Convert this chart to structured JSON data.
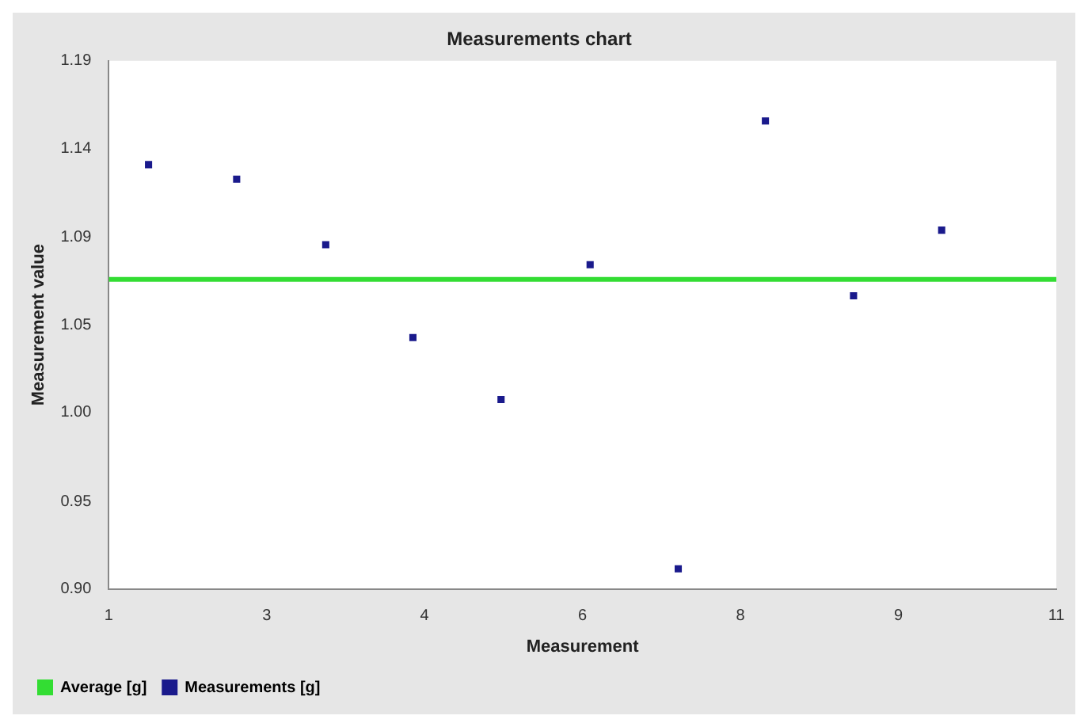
{
  "chart_data": {
    "type": "scatter",
    "title": "Measurements chart",
    "xlabel": "Measurement",
    "ylabel": "Measurement value",
    "xlim": [
      1,
      11
    ],
    "xticks": [
      1,
      {
        "value": 2.667,
        "label": "3"
      },
      {
        "value": 4.333,
        "label": "4"
      },
      6,
      {
        "value": 7.667,
        "label": "8"
      },
      {
        "value": 9.333,
        "label": "9"
      },
      11
    ],
    "ylim": [
      0.9,
      1.19
    ],
    "yticks": [
      {
        "value": 0.9,
        "label": "0.90"
      },
      {
        "value": 0.948,
        "label": "0.95"
      },
      {
        "value": 0.997,
        "label": "1.00"
      },
      {
        "value": 1.045,
        "label": "1.05"
      },
      {
        "value": 1.093,
        "label": "1.09"
      },
      {
        "value": 1.142,
        "label": "1.14"
      },
      1.19
    ],
    "series": [
      {
        "name": "Average [g]",
        "type": "line",
        "color": "#33dd33",
        "marker": "none",
        "x": [
          1,
          11
        ],
        "values": [
          1.07,
          1.07
        ]
      },
      {
        "name": "Measurements [g]",
        "type": "scatter",
        "color": "#1a1a8c",
        "marker": "square",
        "x": [
          1.42,
          2.35,
          3.29,
          4.21,
          5.14,
          6.08,
          7.01,
          7.93,
          8.86,
          9.79
        ],
        "values": [
          1.133,
          1.125,
          1.089,
          1.038,
          1.004,
          1.078,
          0.911,
          1.157,
          1.061,
          1.097
        ]
      }
    ],
    "legend": "bottom left",
    "grid": false
  }
}
